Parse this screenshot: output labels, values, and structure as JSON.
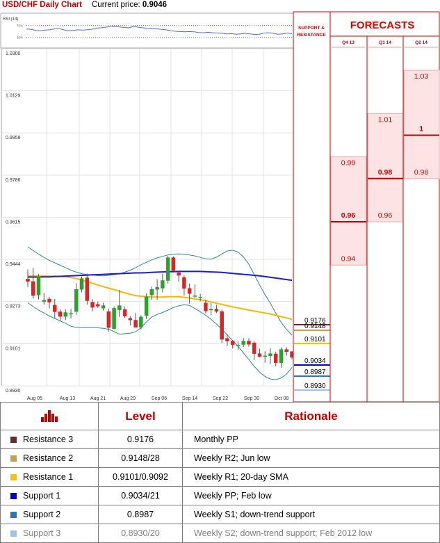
{
  "header": {
    "title": "USD/CHF Daily Chart",
    "price_label": "Current price:",
    "price_value": "0.9046"
  },
  "rsi": {
    "label": "RSI (14)",
    "level_high": "70%",
    "level_low": "30%",
    "values": [
      58,
      57,
      53,
      52,
      54,
      55,
      58,
      59,
      55,
      52,
      53,
      55,
      54,
      55,
      57,
      61,
      62,
      64,
      66,
      66,
      65,
      63,
      62,
      67,
      64,
      62,
      60,
      59,
      58,
      57,
      55,
      52,
      50,
      49,
      48,
      49,
      48,
      46,
      45,
      47,
      45,
      44,
      43,
      41,
      42,
      40,
      41,
      43,
      41,
      39,
      40,
      44,
      45,
      43,
      40,
      41,
      44,
      42
    ]
  },
  "chart_data": {
    "type": "candlestick",
    "title": "USD/CHF Daily Chart",
    "y_ticks": [
      "1.0300",
      "1.0129",
      "0.9958",
      "0.9786",
      "0.9615",
      "0.9444",
      "0.9273",
      "0.9101",
      "0.8930"
    ],
    "ylim": [
      0.893,
      1.03
    ],
    "x_ticks": [
      "Aug 05",
      "Aug 13",
      "Aug 21",
      "Aug 29",
      "Sep 06",
      "Sep 14",
      "Sep 22",
      "Sep 30",
      "Oct 08"
    ],
    "candles": [
      [
        0.9364,
        0.9403,
        0.9332,
        0.9354
      ],
      [
        0.9354,
        0.9409,
        0.9285,
        0.9297
      ],
      [
        0.9299,
        0.9384,
        0.9281,
        0.9374
      ],
      [
        0.9273,
        0.9307,
        0.926,
        0.9278
      ],
      [
        0.9283,
        0.9292,
        0.9244,
        0.927
      ],
      [
        0.9258,
        0.9283,
        0.9206,
        0.9231
      ],
      [
        0.9231,
        0.9241,
        0.9195,
        0.9212
      ],
      [
        0.9212,
        0.9241,
        0.9197,
        0.9228
      ],
      [
        0.9224,
        0.9242,
        0.9204,
        0.9224
      ],
      [
        0.9232,
        0.9347,
        0.9219,
        0.9322
      ],
      [
        0.9322,
        0.9374,
        0.931,
        0.9366
      ],
      [
        0.9369,
        0.9386,
        0.926,
        0.9276
      ],
      [
        0.927,
        0.9282,
        0.9233,
        0.9249
      ],
      [
        0.9261,
        0.9272,
        0.9246,
        0.9254
      ],
      [
        0.9246,
        0.9268,
        0.9236,
        0.9256
      ],
      [
        0.9232,
        0.9243,
        0.915,
        0.9167
      ],
      [
        0.9162,
        0.9253,
        0.916,
        0.9245
      ],
      [
        0.9239,
        0.932,
        0.921,
        0.9256
      ],
      [
        0.924,
        0.9252,
        0.9205,
        0.9213
      ],
      [
        0.9204,
        0.9213,
        0.9176,
        0.9198
      ],
      [
        0.9197,
        0.9226,
        0.9169,
        0.9168
      ],
      [
        0.9168,
        0.9217,
        0.916,
        0.921
      ],
      [
        0.9216,
        0.9305,
        0.9202,
        0.9292
      ],
      [
        0.9299,
        0.9333,
        0.9279,
        0.9322
      ],
      [
        0.9322,
        0.9363,
        0.9279,
        0.933
      ],
      [
        0.9327,
        0.9385,
        0.931,
        0.9358
      ],
      [
        0.9358,
        0.9458,
        0.9346,
        0.9451
      ],
      [
        0.9451,
        0.9456,
        0.939,
        0.9398
      ],
      [
        0.939,
        0.9399,
        0.9353,
        0.9379
      ],
      [
        0.937,
        0.938,
        0.9297,
        0.9326
      ],
      [
        0.9326,
        0.9346,
        0.9264,
        0.9305
      ],
      [
        0.9296,
        0.9342,
        0.9286,
        0.9296
      ],
      [
        0.9289,
        0.9304,
        0.9274,
        0.9291
      ],
      [
        0.9267,
        0.928,
        0.9225,
        0.9234
      ],
      [
        0.9238,
        0.9267,
        0.9218,
        0.9242
      ],
      [
        0.9242,
        0.9259,
        0.9226,
        0.9233
      ],
      [
        0.9232,
        0.924,
        0.9104,
        0.9119
      ],
      [
        0.9123,
        0.914,
        0.9092,
        0.9112
      ],
      [
        0.9112,
        0.9116,
        0.9082,
        0.9097
      ],
      [
        0.9095,
        0.9111,
        0.9077,
        0.9096
      ],
      [
        0.9098,
        0.9124,
        0.9088,
        0.9112
      ],
      [
        0.9112,
        0.9123,
        0.9089,
        0.9099
      ],
      [
        0.9105,
        0.9112,
        0.9035,
        0.9061
      ],
      [
        0.9061,
        0.9081,
        0.9046,
        0.9049
      ],
      [
        0.9049,
        0.9071,
        0.9024,
        0.9052
      ],
      [
        0.9052,
        0.9083,
        0.9019,
        0.9061
      ],
      [
        0.906,
        0.9069,
        0.901,
        0.9024
      ],
      [
        0.9024,
        0.9087,
        0.9004,
        0.9078
      ],
      [
        0.9078,
        0.9087,
        0.9053,
        0.9069
      ],
      [
        0.9069,
        0.9071,
        0.9038,
        0.9046
      ]
    ],
    "ma_blue": [
      0.9372,
      0.9372,
      0.9372,
      0.9373,
      0.9373,
      0.9374,
      0.9375,
      0.9376,
      0.9377,
      0.9378,
      0.9379,
      0.938,
      0.9381,
      0.9382,
      0.9383,
      0.9384,
      0.9385,
      0.9386,
      0.9387,
      0.9388,
      0.9389,
      0.9389,
      0.939,
      0.9391,
      0.9392,
      0.9393,
      0.9394,
      0.9394,
      0.9395,
      0.9395,
      0.9395,
      0.9395,
      0.9395,
      0.9394,
      0.9393,
      0.9392,
      0.9391,
      0.9389,
      0.9387,
      0.9385,
      0.9383,
      0.9381,
      0.9379,
      0.9377,
      0.9374,
      0.9371,
      0.9368,
      0.9365,
      0.9362,
      0.9359
    ],
    "ma_orange": [
      0.9376,
      0.9377,
      0.9377,
      0.9377,
      0.9376,
      0.9376,
      0.9375,
      0.9373,
      0.937,
      0.9366,
      0.936,
      0.9354,
      0.9347,
      0.934,
      0.9333,
      0.9327,
      0.9321,
      0.9314,
      0.9308,
      0.9302,
      0.9297,
      0.9294,
      0.9292,
      0.9291,
      0.9291,
      0.9291,
      0.9292,
      0.9292,
      0.9292,
      0.929,
      0.9287,
      0.9283,
      0.928,
      0.9276,
      0.9271,
      0.9266,
      0.9261,
      0.9256,
      0.9251,
      0.9247,
      0.9242,
      0.9238,
      0.9234,
      0.923,
      0.9226,
      0.9222,
      0.9217,
      0.9211,
      0.9206,
      0.92
    ],
    "boll_upper": [
      0.9495,
      0.948,
      0.9465,
      0.9452,
      0.944,
      0.943,
      0.942,
      0.941,
      0.94,
      0.9392,
      0.9386,
      0.9382,
      0.938,
      0.9378,
      0.9377,
      0.9379,
      0.9382,
      0.9386,
      0.9392,
      0.94,
      0.941,
      0.9422,
      0.9432,
      0.9442,
      0.945,
      0.9456,
      0.9462,
      0.9465,
      0.9466,
      0.9465,
      0.9462,
      0.9458,
      0.9452,
      0.9446,
      0.9445,
      0.9453,
      0.9466,
      0.9478,
      0.9481,
      0.9474,
      0.9454,
      0.9424,
      0.9382,
      0.934,
      0.9301,
      0.9266,
      0.9226,
      0.9188,
      0.9159,
      0.9136
    ],
    "boll_lower": [
      0.9268,
      0.9252,
      0.9238,
      0.9226,
      0.9214,
      0.9204,
      0.9194,
      0.9184,
      0.9172,
      0.9168,
      0.9167,
      0.9167,
      0.9167,
      0.9166,
      0.9164,
      0.916,
      0.915,
      0.914,
      0.9142,
      0.9144,
      0.915,
      0.9166,
      0.919,
      0.921,
      0.922,
      0.9228,
      0.9238,
      0.9248,
      0.9255,
      0.926,
      0.9257,
      0.9244,
      0.9231,
      0.9217,
      0.92,
      0.9181,
      0.9161,
      0.9137,
      0.9114,
      0.9091,
      0.9064,
      0.9037,
      0.9009,
      0.8986,
      0.8968,
      0.8958,
      0.8955,
      0.8962,
      0.8978,
      0.9005
    ],
    "levels": [
      {
        "value": 0.9176,
        "label": "0.9176",
        "color": "#6e2828"
      },
      {
        "value": 0.9148,
        "label": "0.9148",
        "color": "#c6a14a"
      },
      {
        "value": 0.9101,
        "label": "0.9101",
        "color": "#ffc000"
      },
      {
        "value": 0.9034,
        "label": "0.9034",
        "color": "#0000cc"
      },
      {
        "value": 0.8987,
        "label": "0.8987",
        "color": "#2f75b5"
      },
      {
        "value": 0.893,
        "label": "0.8930",
        "color": "#9dc3e6"
      }
    ]
  },
  "forecasts": {
    "title": "FORECASTS",
    "sr_label_line1": "SUPPORT &",
    "sr_label_line2": "RESISTANCE",
    "columns": [
      {
        "name": "Q4 13",
        "low": 0.94,
        "mid": 0.96,
        "high": 0.99,
        "labels": [
          "0.99",
          "0.96",
          "0.94"
        ]
      },
      {
        "name": "Q1 14",
        "low": 0.96,
        "mid": 0.98,
        "high": 1.01,
        "labels": [
          "1.01",
          "0.98",
          "0.96"
        ]
      },
      {
        "name": "Q2 14",
        "low": 0.98,
        "mid": 1.0,
        "high": 1.03,
        "labels": [
          "1.03",
          "1",
          "0.98"
        ]
      }
    ]
  },
  "table": {
    "header_level": "Level",
    "header_rationale": "Rationale",
    "rows": [
      {
        "name": "Resistance 3",
        "level": "0.9176",
        "rationale": "Monthly PP",
        "color": "#6e2828"
      },
      {
        "name": "Resistance 2",
        "level": "0.9148/28",
        "rationale": "Weekly R2; Jun low",
        "color": "#c6a14a"
      },
      {
        "name": "Resistance 1",
        "level": "0.9101/0.9092",
        "rationale": "Weekly R1; 20-day SMA",
        "color": "#ffc000"
      },
      {
        "name": "Support 1",
        "level": "0.9034/21",
        "rationale": "Weekly PP; Feb low",
        "color": "#0000cc"
      },
      {
        "name": "Support 2",
        "level": "0.8987",
        "rationale": "Weekly S1; down-trend support",
        "color": "#2f75b5"
      },
      {
        "name": "Support 3",
        "level": "0.8930/20",
        "rationale": "Weekly S2; down-trend support; Feb 2012 low",
        "color": "#9dc3e6"
      }
    ]
  }
}
